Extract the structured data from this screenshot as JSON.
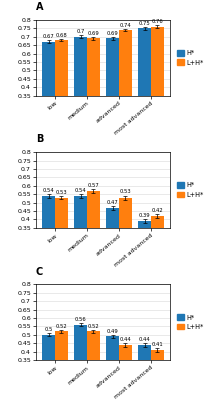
{
  "chart_data": [
    {
      "type": "bar",
      "title": "A",
      "categories": [
        "low",
        "medium",
        "advanced",
        "most advanced"
      ],
      "series": [
        {
          "name": "H*",
          "values": [
            0.67,
            0.7,
            0.69,
            0.75
          ],
          "errors": [
            0.008,
            0.008,
            0.008,
            0.008
          ]
        },
        {
          "name": "L+H*",
          "values": [
            0.68,
            0.69,
            0.74,
            0.76
          ],
          "errors": [
            0.008,
            0.008,
            0.008,
            0.008
          ]
        }
      ],
      "ylim": [
        0.35,
        0.8
      ],
      "yticks": [
        0.35,
        0.4,
        0.45,
        0.5,
        0.55,
        0.6,
        0.65,
        0.7,
        0.75,
        0.8
      ],
      "grid": true,
      "legend": "center left",
      "data_labels": true
    },
    {
      "type": "bar",
      "title": "B",
      "categories": [
        "low",
        "medium",
        "advanced",
        "most advanced"
      ],
      "series": [
        {
          "name": "H*",
          "values": [
            0.54,
            0.54,
            0.47,
            0.39
          ],
          "errors": [
            0.01,
            0.01,
            0.012,
            0.012
          ]
        },
        {
          "name": "L+H*",
          "values": [
            0.53,
            0.57,
            0.53,
            0.42
          ],
          "errors": [
            0.01,
            0.01,
            0.012,
            0.012
          ]
        }
      ],
      "ylim": [
        0.35,
        0.8
      ],
      "yticks": [
        0.35,
        0.4,
        0.45,
        0.5,
        0.55,
        0.6,
        0.65,
        0.7,
        0.75,
        0.8
      ],
      "grid": true,
      "legend": "center left",
      "data_labels": true
    },
    {
      "type": "bar",
      "title": "C",
      "categories": [
        "low",
        "medium",
        "advanced",
        "most advanced"
      ],
      "series": [
        {
          "name": "H*",
          "values": [
            0.5,
            0.56,
            0.49,
            0.44
          ],
          "errors": [
            0.01,
            0.01,
            0.01,
            0.01
          ]
        },
        {
          "name": "L+H*",
          "values": [
            0.52,
            0.52,
            0.44,
            0.41
          ],
          "errors": [
            0.01,
            0.01,
            0.012,
            0.012
          ]
        }
      ],
      "ylim": [
        0.35,
        0.8
      ],
      "yticks": [
        0.35,
        0.4,
        0.45,
        0.5,
        0.55,
        0.6,
        0.65,
        0.7,
        0.75,
        0.8
      ],
      "grid": true,
      "legend": "center left",
      "data_labels": true
    }
  ]
}
